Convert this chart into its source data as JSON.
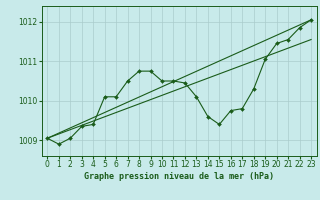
{
  "title": "Graphe pression niveau de la mer (hPa)",
  "background_color": "#c8eaea",
  "grid_color": "#aacccc",
  "line_color": "#1a5c1a",
  "marker_color": "#1a5c1a",
  "x_ticks": [
    0,
    1,
    2,
    3,
    4,
    5,
    6,
    7,
    8,
    9,
    10,
    11,
    12,
    13,
    14,
    15,
    16,
    17,
    18,
    19,
    20,
    21,
    22,
    23
  ],
  "y_ticks": [
    1009,
    1010,
    1011,
    1012
  ],
  "ylim": [
    1008.6,
    1012.4
  ],
  "xlim": [
    -0.5,
    23.5
  ],
  "jagged": {
    "x": [
      0,
      1,
      2,
      3,
      4,
      5,
      6,
      7,
      8,
      9,
      10,
      11,
      12,
      13,
      14,
      15,
      16,
      17,
      18,
      19,
      20,
      21,
      22,
      23
    ],
    "y": [
      1009.05,
      1008.9,
      1009.05,
      1009.35,
      1009.4,
      1010.1,
      1010.1,
      1010.5,
      1010.75,
      1010.75,
      1010.5,
      1010.5,
      1010.45,
      1010.1,
      1009.6,
      1009.4,
      1009.75,
      1009.8,
      1010.3,
      1011.05,
      1011.45,
      1011.55,
      1011.85,
      1012.05
    ]
  },
  "line_upper": {
    "x": [
      0,
      23
    ],
    "y": [
      1009.05,
      1012.05
    ]
  },
  "line_lower": {
    "x": [
      0,
      23
    ],
    "y": [
      1009.05,
      1011.55
    ]
  },
  "tick_labelsize": 5.5,
  "xlabel_fontsize": 6.0
}
